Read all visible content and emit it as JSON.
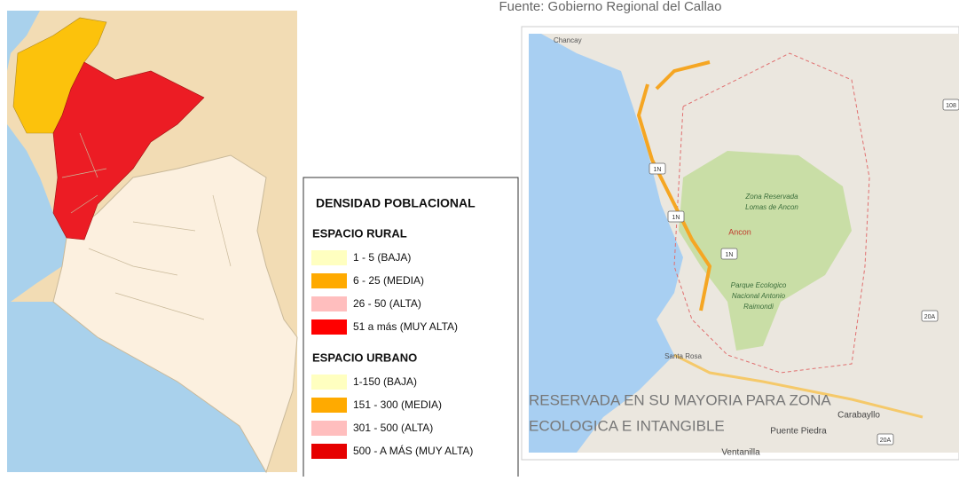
{
  "source": "Fuente: Gobierno Regional del Callao",
  "legend": {
    "title": "DENSIDAD POBLACIONAL",
    "sections": [
      {
        "heading": "ESPACIO RURAL",
        "items": [
          {
            "label": "1 - 5 (BAJA)",
            "color": "#ffffc0"
          },
          {
            "label": "6 - 25 (MEDIA)",
            "color": "#ffaa00"
          },
          {
            "label": "26 - 50 (ALTA)",
            "color": "#ffbebe"
          },
          {
            "label": "51  a  más (MUY ALTA)",
            "color": "#ff0000"
          }
        ]
      },
      {
        "heading": "ESPACIO URBANO",
        "items": [
          {
            "label": "1-150  (BAJA)",
            "color": "#ffffc0"
          },
          {
            "label": "151 - 300  (MEDIA)",
            "color": "#ffaa00"
          },
          {
            "label": "301 - 500  (ALTA)",
            "color": "#ffbebe"
          },
          {
            "label": "500 - A MÁS  (MUY ALTA)",
            "color": "#e60000"
          }
        ]
      }
    ]
  },
  "map": {
    "places": {
      "chancay": "Chancay",
      "reserve": [
        "Zona Reservada",
        "Lomas de Ancon"
      ],
      "ancon": "Ancon",
      "park": [
        "Parque Ecologico",
        "Nacional Antonio",
        "Raimondi"
      ],
      "santa_rosa": "Santa Rosa",
      "carabayllo": "Carabayllo",
      "puente_piedra": "Puente Piedra",
      "ventanilla": "Ventanilla"
    },
    "shields": [
      "1N",
      "1N",
      "1N",
      "108",
      "20A",
      "20A"
    ],
    "overlay": [
      "RESERVADA EN SU MAYORIA PARA ZONA",
      "ECOLOGICA E INTANGIBLE"
    ]
  }
}
